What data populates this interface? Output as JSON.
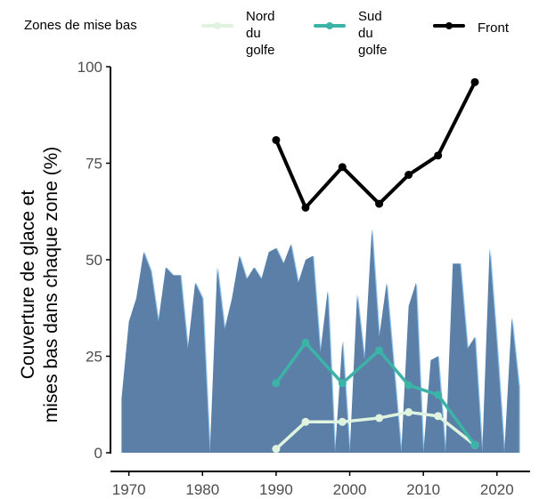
{
  "legend": {
    "title": "Zones de mise bas",
    "items": [
      {
        "label": "Nord\ndu golfe",
        "color": "#dff3df"
      },
      {
        "label": "Sud\ndu golfe",
        "color": "#3bb3a6"
      },
      {
        "label": "Front",
        "color": "#000000"
      }
    ]
  },
  "chart_data": {
    "type": "line",
    "ylabel": "Couverture de glace et\nmises bas dans chaque zone (%)",
    "xlabel": "",
    "xlim": [
      1967.5,
      2024.5
    ],
    "ylim": [
      0,
      100
    ],
    "x_ticks": [
      1970,
      1980,
      1990,
      2000,
      2010,
      2020
    ],
    "y_ticks": [
      0,
      25,
      50,
      75,
      100
    ],
    "ice_cover": {
      "fill_color": "#5b7fa6",
      "highlight_color": "#8fc8f5",
      "x": [
        1969,
        1970,
        1971,
        1972,
        1973,
        1974,
        1975,
        1976,
        1977,
        1978,
        1979,
        1980,
        1981,
        1982,
        1983,
        1984,
        1985,
        1986,
        1987,
        1988,
        1989,
        1990,
        1991,
        1992,
        1993,
        1994,
        1995,
        1996,
        1997,
        1998,
        1999,
        2000,
        2001,
        2002,
        2003,
        2004,
        2005,
        2006,
        2007,
        2008,
        2009,
        2010,
        2011,
        2012,
        2013,
        2014,
        2015,
        2016,
        2017,
        2018,
        2019,
        2020,
        2021,
        2022,
        2023
      ],
      "y": [
        14,
        34,
        40,
        52,
        47,
        34,
        48,
        46,
        46,
        27,
        44,
        40,
        0,
        48,
        32,
        40,
        51,
        45,
        48,
        45,
        52,
        53,
        49,
        54,
        44,
        50,
        51,
        26,
        42,
        0,
        29,
        0,
        41,
        24,
        58,
        30,
        44,
        22,
        0,
        38,
        44,
        0,
        24,
        25,
        0,
        49,
        49,
        27,
        30,
        0,
        53,
        28,
        0,
        35,
        17
      ]
    },
    "series": [
      {
        "name": "Nord du golfe",
        "x": [
          1990,
          1994,
          1999,
          2004,
          2008,
          2012,
          2017
        ],
        "values": [
          1,
          8,
          8,
          9,
          10.5,
          9.5,
          2
        ],
        "color": "#dff3df"
      },
      {
        "name": "Sud du golfe",
        "x": [
          1990,
          1994,
          1999,
          2004,
          2008,
          2012,
          2017
        ],
        "values": [
          18,
          28.5,
          18,
          26.5,
          17.5,
          15,
          2
        ],
        "color": "#3bb3a6"
      },
      {
        "name": "Front",
        "x": [
          1990,
          1994,
          1999,
          2004,
          2008,
          2012,
          2017
        ],
        "values": [
          81,
          63.5,
          74,
          64.5,
          72,
          77,
          96
        ],
        "color": "#000000"
      }
    ]
  }
}
